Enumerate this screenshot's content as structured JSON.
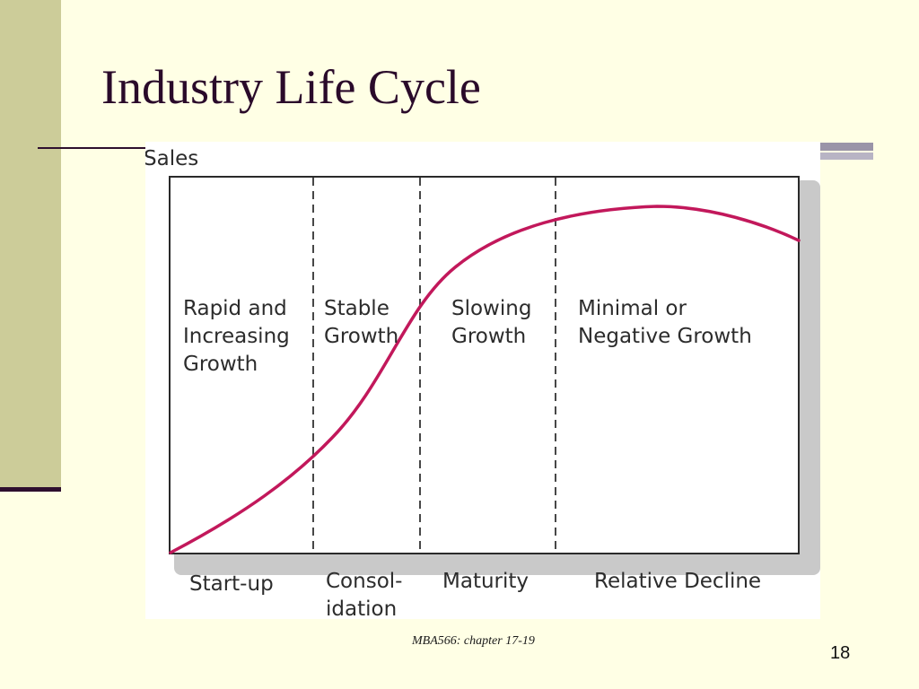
{
  "slide": {
    "title": "Industry Life Cycle",
    "footer": "MBA566: chapter 17-19",
    "page_number": "18"
  },
  "diagram": {
    "y_axis_label": "Sales",
    "phase_descriptions": [
      [
        "Rapid and",
        "Increasing",
        "Growth"
      ],
      [
        "Stable",
        "Growth"
      ],
      [
        "Slowing",
        "Growth"
      ],
      [
        "Minimal or",
        "Negative Growth"
      ]
    ],
    "stage_names": [
      [
        "Start-up"
      ],
      [
        "Consol-",
        "idation"
      ],
      [
        "Maturity"
      ],
      [
        "Relative Decline"
      ]
    ],
    "curve_color": "#c2185b"
  }
}
